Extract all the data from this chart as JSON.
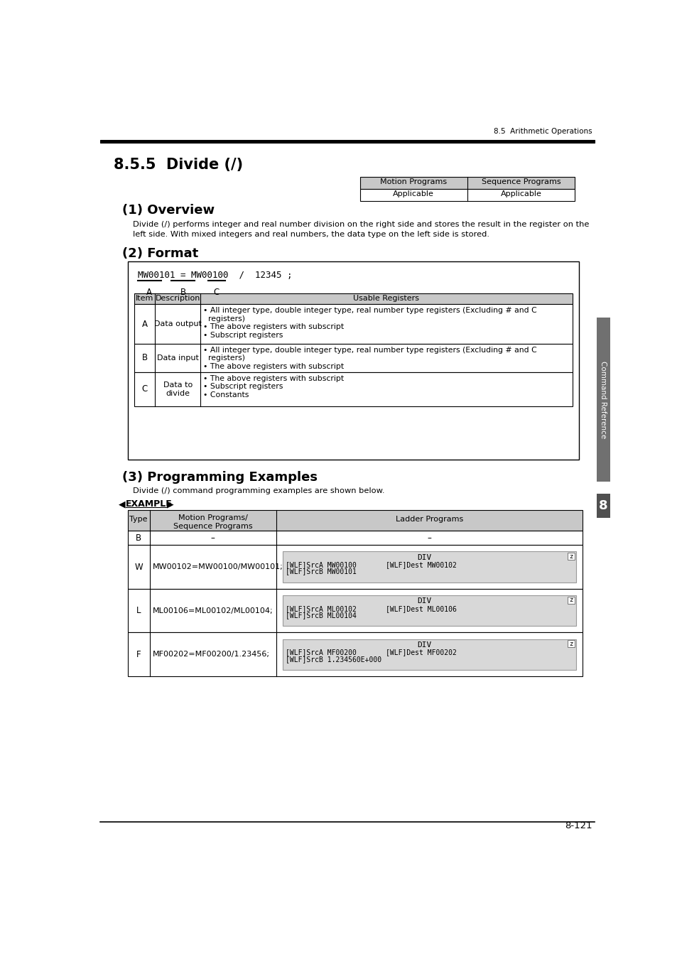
{
  "page_header_right": "8.5  Arithmetic Operations",
  "section_title": "8.5.5  Divide (/)",
  "header_table": {
    "col1": "Motion Programs",
    "col2": "Sequence Programs",
    "row1_col1": "Applicable",
    "row1_col2": "Applicable"
  },
  "subsection1_title": "(1) Overview",
  "overview_text1": "Divide (/) performs integer and real number division on the right side and stores the result in the register on the",
  "overview_text2": "left side. With mixed integers and real numbers, the data type on the left side is stored.",
  "subsection2_title": "(2) Format",
  "format_code": "MW00101 = MW00100  /  12345 ;",
  "format_table_rows": [
    {
      "item": "A",
      "desc": "Data output",
      "regs_lines": [
        "• All integer type, double integer type, real number type registers (Excluding # and C",
        "  registers)",
        "• The above registers with subscript",
        "• Subscript registers"
      ]
    },
    {
      "item": "B",
      "desc": "Data input",
      "regs_lines": [
        "• All integer type, double integer type, real number type registers (Excluding # and C",
        "  registers)",
        "• The above registers with subscript"
      ]
    },
    {
      "item": "C",
      "desc": "Data to\ndivide",
      "regs_lines": [
        "• The above registers with subscript",
        "• Subscript registers",
        "• Constants"
      ]
    }
  ],
  "subsection3_title": "(3) Programming Examples",
  "prog_intro": "Divide (/) command programming examples are shown below.",
  "example_rows": [
    {
      "type": "B",
      "motion": "–",
      "has_diagram": false,
      "ladder_dash": "–"
    },
    {
      "type": "W",
      "motion": "MW00102=MW00100/MW00101;",
      "has_diagram": true,
      "diag_title": "DIV",
      "diag_line2": "[WLF]SrcA MW00100       [WLF]Dest MW00102",
      "diag_line3": "[WLF]SrcB MW00101"
    },
    {
      "type": "L",
      "motion": "ML00106=ML00102/ML00104;",
      "has_diagram": true,
      "diag_title": "DIV",
      "diag_line2": "[WLF]SrcA ML00102       [WLF]Dest ML00106",
      "diag_line3": "[WLF]SrcB ML00104"
    },
    {
      "type": "F",
      "motion": "MF00202=MF00200/1.23456;",
      "has_diagram": true,
      "diag_title": "DIV",
      "diag_line2": "[WLF]SrcA MF00200       [WLF]Dest MF00202",
      "diag_line3": "[WLF]SrcB 1.234560E+000"
    }
  ],
  "sidebar_text": "Command Reference",
  "sidebar_number": "8",
  "page_number": "8-121",
  "bg_color": "#ffffff",
  "table_header_bg": "#c8c8c8",
  "diagram_bg": "#d8d8d8",
  "sidebar_bg": "#707070",
  "sidebar_num_bg": "#505050"
}
